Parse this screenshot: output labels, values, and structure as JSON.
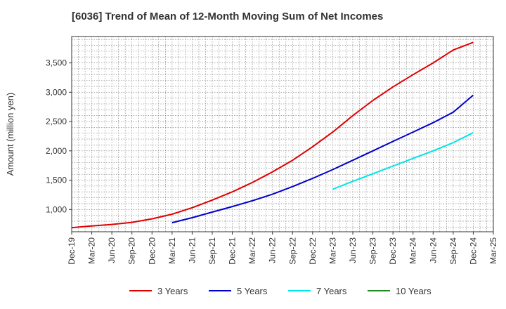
{
  "chart_data": {
    "type": "line",
    "title": "[6036]  Trend of Mean of 12-Month Moving Sum of Net Incomes",
    "xlabel": "",
    "ylabel": "Amount (million yen)",
    "x": [
      "Dec-19",
      "Mar-20",
      "Jun-20",
      "Sep-20",
      "Dec-20",
      "Mar-21",
      "Jun-21",
      "Sep-21",
      "Dec-21",
      "Mar-22",
      "Jun-22",
      "Sep-22",
      "Dec-22",
      "Mar-23",
      "Jun-23",
      "Sep-23",
      "Dec-23",
      "Mar-24",
      "Jun-24",
      "Sep-24",
      "Dec-24",
      "Mar-25"
    ],
    "ylim": [
      620,
      3950
    ],
    "yticks": [
      1000,
      1500,
      2000,
      2500,
      3000,
      3500
    ],
    "ytick_labels": [
      "1,000",
      "1,500",
      "2,000",
      "2,500",
      "3,000",
      "3,500"
    ],
    "grid": true,
    "legend_position": "bottom",
    "series": [
      {
        "name": "3 Years",
        "color": "#e00000",
        "values": [
          690,
          720,
          745,
          780,
          840,
          920,
          1030,
          1160,
          1300,
          1460,
          1640,
          1840,
          2070,
          2320,
          2600,
          2860,
          3090,
          3300,
          3500,
          3720,
          3850,
          null
        ]
      },
      {
        "name": "5 Years",
        "color": "#0000cc",
        "values": [
          null,
          null,
          null,
          null,
          null,
          775,
          860,
          955,
          1050,
          1150,
          1260,
          1390,
          1530,
          1680,
          1840,
          2000,
          2160,
          2320,
          2480,
          2660,
          2950,
          null
        ]
      },
      {
        "name": "7 Years",
        "color": "#00e5e5",
        "values": [
          null,
          null,
          null,
          null,
          null,
          null,
          null,
          null,
          null,
          null,
          null,
          null,
          null,
          1345,
          1480,
          1610,
          1740,
          1870,
          2000,
          2140,
          2310,
          null
        ]
      },
      {
        "name": "10 Years",
        "color": "#228b22",
        "values": [
          null,
          null,
          null,
          null,
          null,
          null,
          null,
          null,
          null,
          null,
          null,
          null,
          null,
          null,
          null,
          null,
          null,
          null,
          null,
          null,
          null,
          null
        ]
      }
    ]
  }
}
